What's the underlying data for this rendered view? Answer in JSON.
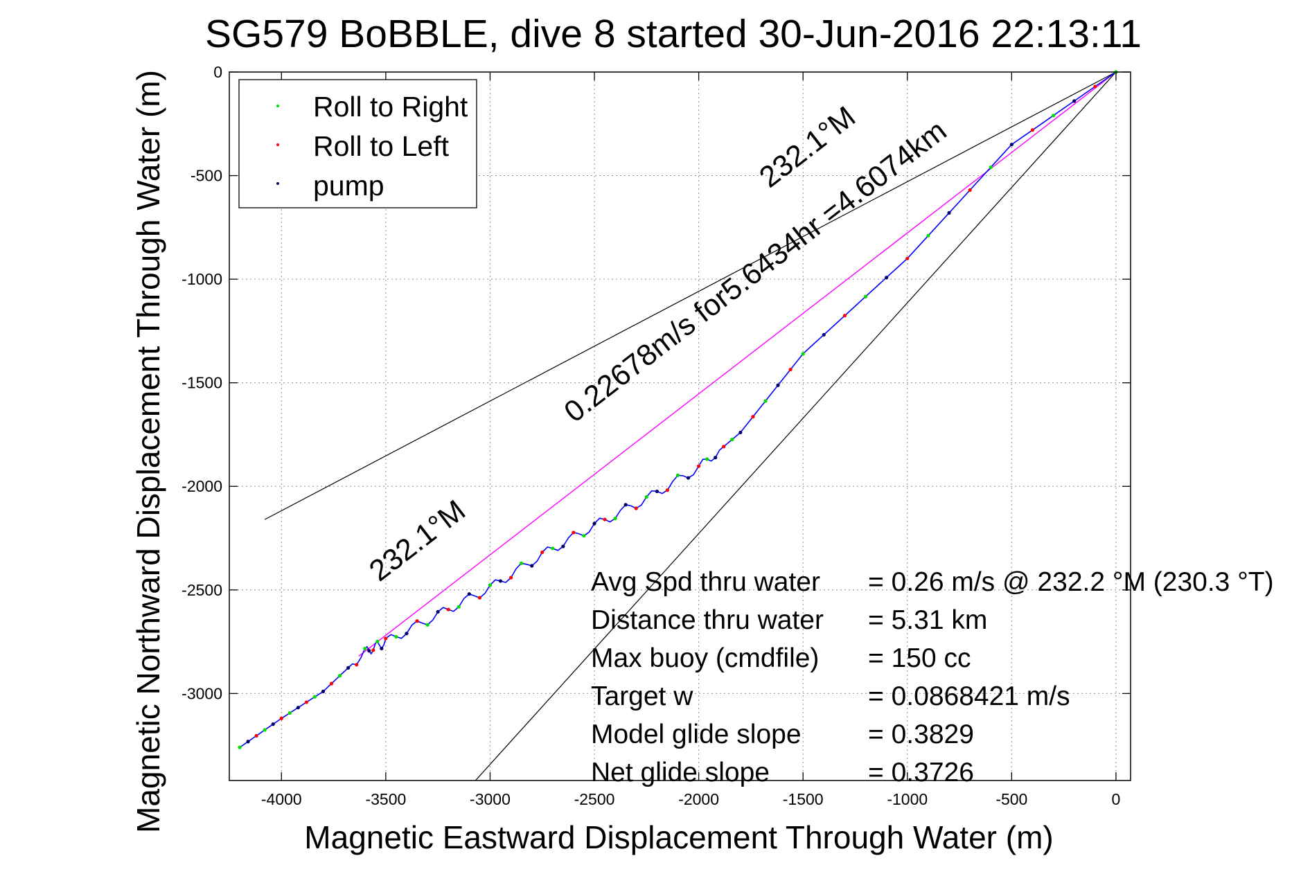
{
  "chart_data": {
    "type": "line",
    "title": "SG579 BoBBLE, dive 8 started 30-Jun-2016 22:13:11",
    "xlabel": "Magnetic Eastward Displacement Through Water (m)",
    "ylabel": "Magnetic Northward Displacement Through Water (m)",
    "xlim": [
      -4250,
      70
    ],
    "ylim": [
      -3420,
      0
    ],
    "xticks": [
      -4000,
      -3500,
      -3000,
      -2500,
      -2000,
      -1500,
      -1000,
      -500,
      0
    ],
    "yticks": [
      0,
      -500,
      -1000,
      -1500,
      -2000,
      -2500,
      -3000
    ],
    "grid": true,
    "legend": {
      "placement": "top-left",
      "entries": [
        {
          "label": "Roll to Right",
          "color": "#00dd00"
        },
        {
          "label": "Roll to Left",
          "color": "#ff0000"
        },
        {
          "label": "pump",
          "color": "#000066"
        }
      ]
    },
    "track": {
      "color": "#0000ff",
      "start": [
        0,
        0
      ],
      "end": [
        -4200,
        -3260
      ],
      "waypoints": [
        [
          0,
          0
        ],
        [
          -500,
          -350
        ],
        [
          -1000,
          -900
        ],
        [
          -1500,
          -1360
        ],
        [
          -1800,
          -1740
        ],
        [
          -2000,
          -1910
        ],
        [
          -2250,
          -2060
        ],
        [
          -2500,
          -2190
        ],
        [
          -2750,
          -2330
        ],
        [
          -3000,
          -2490
        ],
        [
          -3250,
          -2620
        ],
        [
          -3500,
          -2750
        ],
        [
          -3600,
          -2800
        ],
        [
          -3800,
          -2990
        ],
        [
          -4000,
          -3120
        ],
        [
          -4200,
          -3260
        ]
      ]
    },
    "heading_line": {
      "color": "#ff00ff",
      "from": [
        0,
        0
      ],
      "to": [
        -3630,
        -2820
      ]
    },
    "cone_lines": [
      {
        "color": "#000000",
        "from": [
          0,
          0
        ],
        "to": [
          -4080,
          -2160
        ]
      },
      {
        "color": "#000000",
        "from": [
          0,
          0
        ],
        "to": [
          -3070,
          -3420
        ]
      }
    ],
    "annotations": [
      {
        "text": "232.1°M",
        "at": [
          -1450,
          -400
        ]
      },
      {
        "text": "0.22678m/s for5.6434hr =4.6074km",
        "at": [
          -1700,
          -1000
        ]
      },
      {
        "text": "232.1°M",
        "at": [
          -3320,
          -2300
        ]
      }
    ],
    "stats": [
      {
        "label": "Avg Spd thru water",
        "value": "=  0.26 m/s @ 232.2 °M (230.3 °T)"
      },
      {
        "label": "Distance thru water",
        "value": "=  5.31 km"
      },
      {
        "label": "Max buoy (cmdfile)",
        "value": "= 150 cc"
      },
      {
        "label": "Target w",
        "value": "= 0.0868421 m/s"
      },
      {
        "label": "Model glide slope",
        "value": "= 0.3829"
      },
      {
        "label": "Net glide slope",
        "value": "= 0.3726"
      }
    ]
  }
}
